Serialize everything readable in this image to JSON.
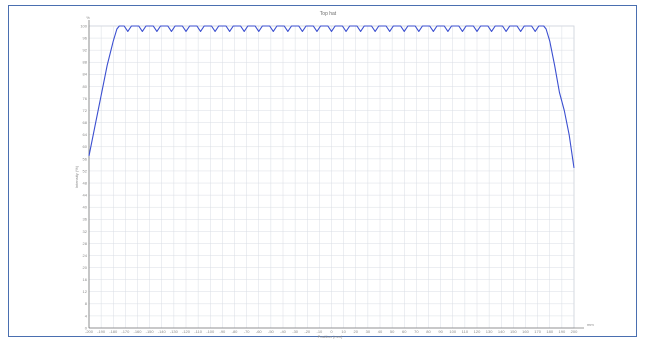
{
  "chart_data": {
    "type": "line",
    "title": "Top hat",
    "xlabel": "Position (mm)",
    "ylabel": "Intensity (%)",
    "x_label_corner": "mm",
    "y_label_corner": "%",
    "xlim": [
      -200,
      200
    ],
    "ylim": [
      0,
      100
    ],
    "grid": true,
    "x_ticks": [
      "-200",
      "-190",
      "-180",
      "-170",
      "-160",
      "-150",
      "-140",
      "-130",
      "-120",
      "-110",
      "-100",
      "-90",
      "-80",
      "-70",
      "-60",
      "-50",
      "-40",
      "-30",
      "-20",
      "-10",
      "0",
      "10",
      "20",
      "30",
      "40",
      "50",
      "60",
      "70",
      "80",
      "90",
      "100",
      "110",
      "120",
      "130",
      "140",
      "150",
      "160",
      "170",
      "180",
      "190",
      "200"
    ],
    "y_ticks": [
      "0",
      "4",
      "8",
      "12",
      "16",
      "20",
      "24",
      "28",
      "32",
      "36",
      "40",
      "44",
      "48",
      "52",
      "56",
      "60",
      "64",
      "68",
      "72",
      "76",
      "80",
      "84",
      "88",
      "92",
      "96",
      "100"
    ],
    "series": [
      {
        "color": "#3b4fd0",
        "points": [
          [
            -200,
            57
          ],
          [
            -195,
            67
          ],
          [
            -190,
            77
          ],
          [
            -185,
            87
          ],
          [
            -180,
            95
          ],
          [
            -177,
            99
          ],
          [
            -175,
            100
          ],
          [
            -171,
            100
          ],
          [
            -168,
            98.2
          ],
          [
            -165,
            100
          ],
          [
            -159,
            100
          ],
          [
            -156,
            98.2
          ],
          [
            -153,
            100
          ],
          [
            -147,
            100
          ],
          [
            -144,
            98.2
          ],
          [
            -141,
            100
          ],
          [
            -135,
            100
          ],
          [
            -132,
            98.2
          ],
          [
            -129,
            100
          ],
          [
            -123,
            100
          ],
          [
            -120,
            98.2
          ],
          [
            -117,
            100
          ],
          [
            -111,
            100
          ],
          [
            -108,
            98.2
          ],
          [
            -105,
            100
          ],
          [
            -99,
            100
          ],
          [
            -96,
            98.2
          ],
          [
            -93,
            100
          ],
          [
            -87,
            100
          ],
          [
            -84,
            98.2
          ],
          [
            -81,
            100
          ],
          [
            -75,
            100
          ],
          [
            -72,
            98.2
          ],
          [
            -69,
            100
          ],
          [
            -63,
            100
          ],
          [
            -60,
            98.2
          ],
          [
            -57,
            100
          ],
          [
            -51,
            100
          ],
          [
            -48,
            98.2
          ],
          [
            -45,
            100
          ],
          [
            -39,
            100
          ],
          [
            -36,
            98.2
          ],
          [
            -33,
            100
          ],
          [
            -27,
            100
          ],
          [
            -24,
            98.2
          ],
          [
            -21,
            100
          ],
          [
            -15,
            100
          ],
          [
            -12,
            98.2
          ],
          [
            -9,
            100
          ],
          [
            -3,
            100
          ],
          [
            0,
            98.2
          ],
          [
            3,
            100
          ],
          [
            9,
            100
          ],
          [
            12,
            98.2
          ],
          [
            15,
            100
          ],
          [
            21,
            100
          ],
          [
            24,
            98.2
          ],
          [
            27,
            100
          ],
          [
            33,
            100
          ],
          [
            36,
            98.2
          ],
          [
            39,
            100
          ],
          [
            45,
            100
          ],
          [
            48,
            98.2
          ],
          [
            51,
            100
          ],
          [
            57,
            100
          ],
          [
            60,
            98.2
          ],
          [
            63,
            100
          ],
          [
            69,
            100
          ],
          [
            72,
            98.2
          ],
          [
            75,
            100
          ],
          [
            81,
            100
          ],
          [
            84,
            98.2
          ],
          [
            87,
            100
          ],
          [
            93,
            100
          ],
          [
            96,
            98.2
          ],
          [
            99,
            100
          ],
          [
            105,
            100
          ],
          [
            108,
            98.2
          ],
          [
            111,
            100
          ],
          [
            117,
            100
          ],
          [
            120,
            98.2
          ],
          [
            123,
            100
          ],
          [
            129,
            100
          ],
          [
            132,
            98.2
          ],
          [
            135,
            100
          ],
          [
            141,
            100
          ],
          [
            144,
            98.2
          ],
          [
            147,
            100
          ],
          [
            153,
            100
          ],
          [
            156,
            98.2
          ],
          [
            159,
            100
          ],
          [
            165,
            100
          ],
          [
            168,
            98.2
          ],
          [
            171,
            100
          ],
          [
            175,
            100
          ],
          [
            177,
            99
          ],
          [
            180,
            95
          ],
          [
            184,
            87
          ],
          [
            188,
            78
          ],
          [
            192,
            72
          ],
          [
            196,
            64
          ],
          [
            200,
            53
          ]
        ]
      }
    ]
  }
}
